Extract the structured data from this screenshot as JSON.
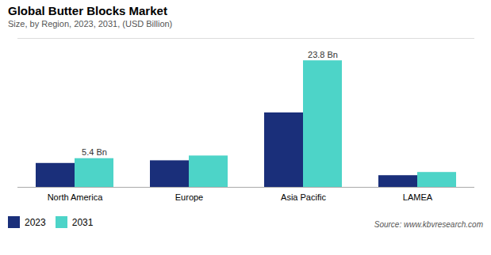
{
  "chart_data": {
    "type": "bar",
    "title": "Global Butter Blocks Market",
    "subtitle": "Size, by Region, 2023, 2031, (USD Billion)",
    "categories": [
      "North America",
      "Europe",
      "Asia Pacific",
      "LAMEA"
    ],
    "series": [
      {
        "name": "2023",
        "color": "#1a2f7a",
        "values": [
          4.5,
          5.0,
          14.0,
          2.2
        ]
      },
      {
        "name": "2031",
        "color": "#4dd4c8",
        "values": [
          5.4,
          5.9,
          23.8,
          2.8
        ]
      }
    ],
    "annotations": [
      {
        "text": "5.4 Bn",
        "category": "North America",
        "series": "2031"
      },
      {
        "text": "23.8 Bn",
        "category": "Asia Pacific",
        "series": "2031"
      }
    ],
    "source": "Source: www.kbvresearch.com",
    "ylim": [
      0,
      28
    ],
    "grid": false,
    "legend": "bottom",
    "tick_labels": "x"
  }
}
